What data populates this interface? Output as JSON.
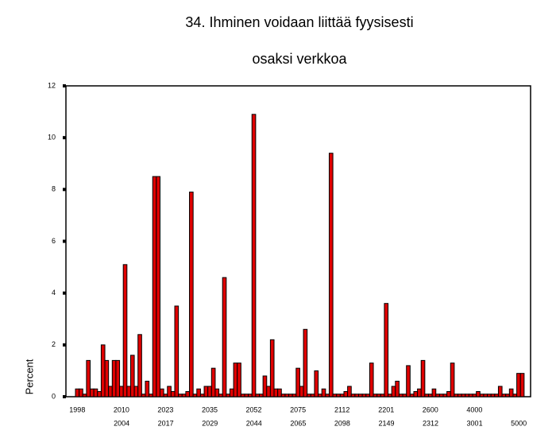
{
  "chart_data": {
    "type": "bar",
    "title": [
      "34. Ihminen voidaan liittää fyysisesti",
      "osaksi verkkoa"
    ],
    "y_label": "Percent",
    "color": "#e00000",
    "ylim": [
      0,
      12
    ],
    "yticks": [
      0,
      2,
      4,
      6,
      8,
      10,
      12
    ],
    "categories": [
      "1998",
      null,
      null,
      null,
      null,
      null,
      "2004",
      null,
      null,
      null,
      null,
      null,
      "2010",
      null,
      null,
      null,
      null,
      null,
      "2017",
      null,
      null,
      null,
      null,
      null,
      "2023",
      null,
      null,
      null,
      null,
      null,
      "2029",
      null,
      null,
      null,
      null,
      null,
      "2035",
      null,
      null,
      null,
      null,
      null,
      "2044",
      null,
      null,
      null,
      null,
      null,
      "2052",
      null,
      null,
      null,
      null,
      null,
      "2065",
      null,
      null,
      null,
      null,
      null,
      "2075",
      null,
      null,
      null,
      null,
      null,
      "2098",
      null,
      null,
      null,
      null,
      null,
      "2112",
      null,
      null,
      null,
      null,
      null,
      "2149",
      null,
      null,
      null,
      null,
      null,
      "2201",
      null,
      null,
      null,
      null,
      null,
      "2312",
      null,
      null,
      null,
      null,
      null,
      "2600",
      null,
      null,
      null,
      null,
      null,
      "3001",
      null,
      null,
      null,
      null,
      null,
      "4000",
      null,
      null,
      null,
      null,
      null,
      "5000",
      null,
      null,
      null,
      null,
      null,
      null,
      null
    ],
    "values": [
      0.3,
      0.3,
      0.1,
      1.4,
      0.3,
      0.3,
      0.2,
      2.0,
      1.4,
      0.4,
      1.4,
      1.4,
      0.4,
      5.1,
      0.4,
      1.6,
      0.4,
      2.4,
      0.1,
      0.6,
      0.1,
      8.5,
      8.5,
      0.3,
      0.1,
      0.4,
      0.2,
      3.5,
      0.1,
      0.1,
      0.2,
      7.9,
      0.1,
      0.3,
      0.1,
      0.4,
      0.4,
      1.1,
      0.3,
      0.1,
      4.6,
      0.1,
      0.3,
      1.3,
      1.3,
      0.1,
      0.1,
      0.1,
      10.9,
      0.1,
      0.1,
      0.8,
      0.4,
      2.2,
      0.3,
      0.3,
      0.1,
      0.1,
      0.1,
      0.1,
      1.1,
      0.4,
      2.6,
      0.1,
      0.1,
      1.0,
      0.1,
      0.3,
      0.1,
      9.4,
      0.1,
      0.1,
      0.1,
      0.2,
      0.4,
      0.1,
      0.1,
      0.1,
      0.1,
      0.1,
      1.3,
      0.1,
      0.1,
      0.1,
      3.6,
      0.1,
      0.4,
      0.6,
      0.1,
      0.1,
      1.2,
      0.1,
      0.2,
      0.3,
      1.4,
      0.1,
      0.1,
      0.3,
      0.1,
      0.1,
      0.1,
      0.2,
      1.3,
      0.1,
      0.1,
      0.1,
      0.1,
      0.1,
      0.1,
      0.2,
      0.1,
      0.1,
      0.1,
      0.1,
      0.1,
      0.4,
      0.1,
      0.1,
      0.3,
      0.1,
      0.9,
      0.9
    ]
  }
}
